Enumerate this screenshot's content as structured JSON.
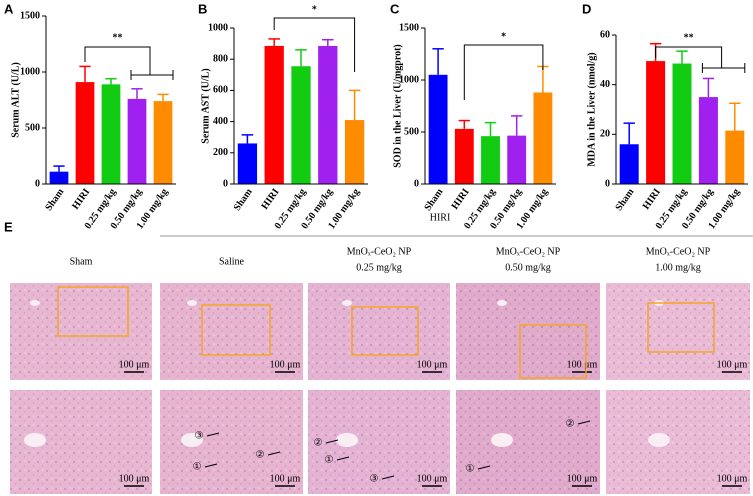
{
  "chart_data": [
    {
      "type": "bar",
      "panel": "A",
      "ylabel": "Serum ALT (U/L)",
      "categories": [
        "Sham",
        "HIRI",
        "0.25 mg/kg",
        "0.50 mg/kg",
        "1.00 mg/kg"
      ],
      "values": [
        110,
        910,
        890,
        760,
        740
      ],
      "errors": [
        50,
        140,
        50,
        90,
        60
      ],
      "colors": [
        "#0000ff",
        "#ff0000",
        "#11cc11",
        "#a020f0",
        "#ff8c00"
      ],
      "ylim": [
        0,
        1500
      ],
      "yticks": [
        0,
        500,
        1000,
        1500
      ],
      "significance": "**"
    },
    {
      "type": "bar",
      "panel": "B",
      "ylabel": "Serum AST (U/L)",
      "categories": [
        "Sham",
        "HIRI",
        "0.25 mg/kg",
        "0.50 mg/kg",
        "1.00 mg/kg"
      ],
      "values": [
        260,
        885,
        755,
        885,
        410
      ],
      "errors": [
        55,
        45,
        105,
        40,
        190
      ],
      "colors": [
        "#0000ff",
        "#ff0000",
        "#11cc11",
        "#a020f0",
        "#ff8c00"
      ],
      "ylim": [
        0,
        1000
      ],
      "yticks": [
        0,
        200,
        400,
        600,
        800,
        1000
      ],
      "significance": "*"
    },
    {
      "type": "bar",
      "panel": "C",
      "ylabel": "SOD in the Liver (U/mgprot)",
      "categories": [
        "Sham",
        "HIRI",
        "0.25 mg/kg",
        "0.50 mg/kg",
        "1.00 mg/kg"
      ],
      "values": [
        1050,
        530,
        460,
        465,
        880
      ],
      "errors": [
        250,
        80,
        130,
        190,
        250
      ],
      "colors": [
        "#0000ff",
        "#ff0000",
        "#11cc11",
        "#a020f0",
        "#ff8c00"
      ],
      "ylim": [
        0,
        1500
      ],
      "yticks": [
        0,
        500,
        1000,
        1500
      ],
      "significance": "*"
    },
    {
      "type": "bar",
      "panel": "D",
      "ylabel": "MDA in the Liver (nmol/g)",
      "categories": [
        "Sham",
        "HIRI",
        "0.25 mg/kg",
        "0.50 mg/kg",
        "1.00 mg/kg"
      ],
      "values": [
        16,
        49.5,
        48.5,
        35,
        21.5
      ],
      "errors": [
        8.5,
        7,
        5,
        7.5,
        11
      ],
      "colors": [
        "#0000ff",
        "#ff0000",
        "#11cc11",
        "#a020f0",
        "#ff8c00"
      ],
      "ylim": [
        0,
        60
      ],
      "yticks": [
        0,
        20,
        40,
        60
      ],
      "significance": "**"
    }
  ],
  "panel_e": {
    "label": "E",
    "group": "HIRI",
    "scale_bar": "100 μm",
    "columns": [
      {
        "name": "Sham"
      },
      {
        "name": "Saline",
        "markers": [
          "③",
          "①",
          "②"
        ]
      },
      {
        "name": "MnOₓ-CeO₂ NP",
        "dose": "0.25 mg/kg",
        "markers": [
          "②",
          "①",
          "③"
        ]
      },
      {
        "name": "MnOₓ-CeO₂ NP",
        "dose": "0.50 mg/kg",
        "markers": [
          "②",
          "①"
        ]
      },
      {
        "name": "MnOₓ-CeO₂ NP",
        "dose": "1.00 mg/kg"
      }
    ]
  }
}
